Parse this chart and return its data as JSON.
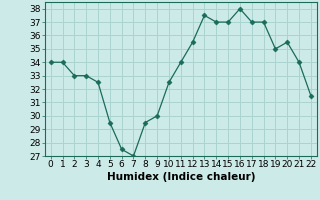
{
  "x": [
    0,
    1,
    2,
    3,
    4,
    5,
    6,
    7,
    8,
    9,
    10,
    11,
    12,
    13,
    14,
    15,
    16,
    17,
    18,
    19,
    20,
    21,
    22
  ],
  "y": [
    34,
    34,
    33,
    33,
    32.5,
    29.5,
    27.5,
    27,
    29.5,
    30,
    32.5,
    34,
    35.5,
    37.5,
    37,
    37,
    38,
    37,
    37,
    35,
    35.5,
    34,
    31.5
  ],
  "line_color": "#1a6b5a",
  "marker": "D",
  "marker_size": 2.5,
  "bg_color": "#cceae7",
  "grid_color": "#aad4d0",
  "xlabel": "Humidex (Indice chaleur)",
  "ylim": [
    27,
    38.5
  ],
  "xlim": [
    -0.5,
    22.5
  ],
  "yticks": [
    27,
    28,
    29,
    30,
    31,
    32,
    33,
    34,
    35,
    36,
    37,
    38
  ],
  "xticks": [
    0,
    1,
    2,
    3,
    4,
    5,
    6,
    7,
    8,
    9,
    10,
    11,
    12,
    13,
    14,
    15,
    16,
    17,
    18,
    19,
    20,
    21,
    22
  ],
  "tick_label_size": 6.5,
  "xlabel_size": 7.5
}
